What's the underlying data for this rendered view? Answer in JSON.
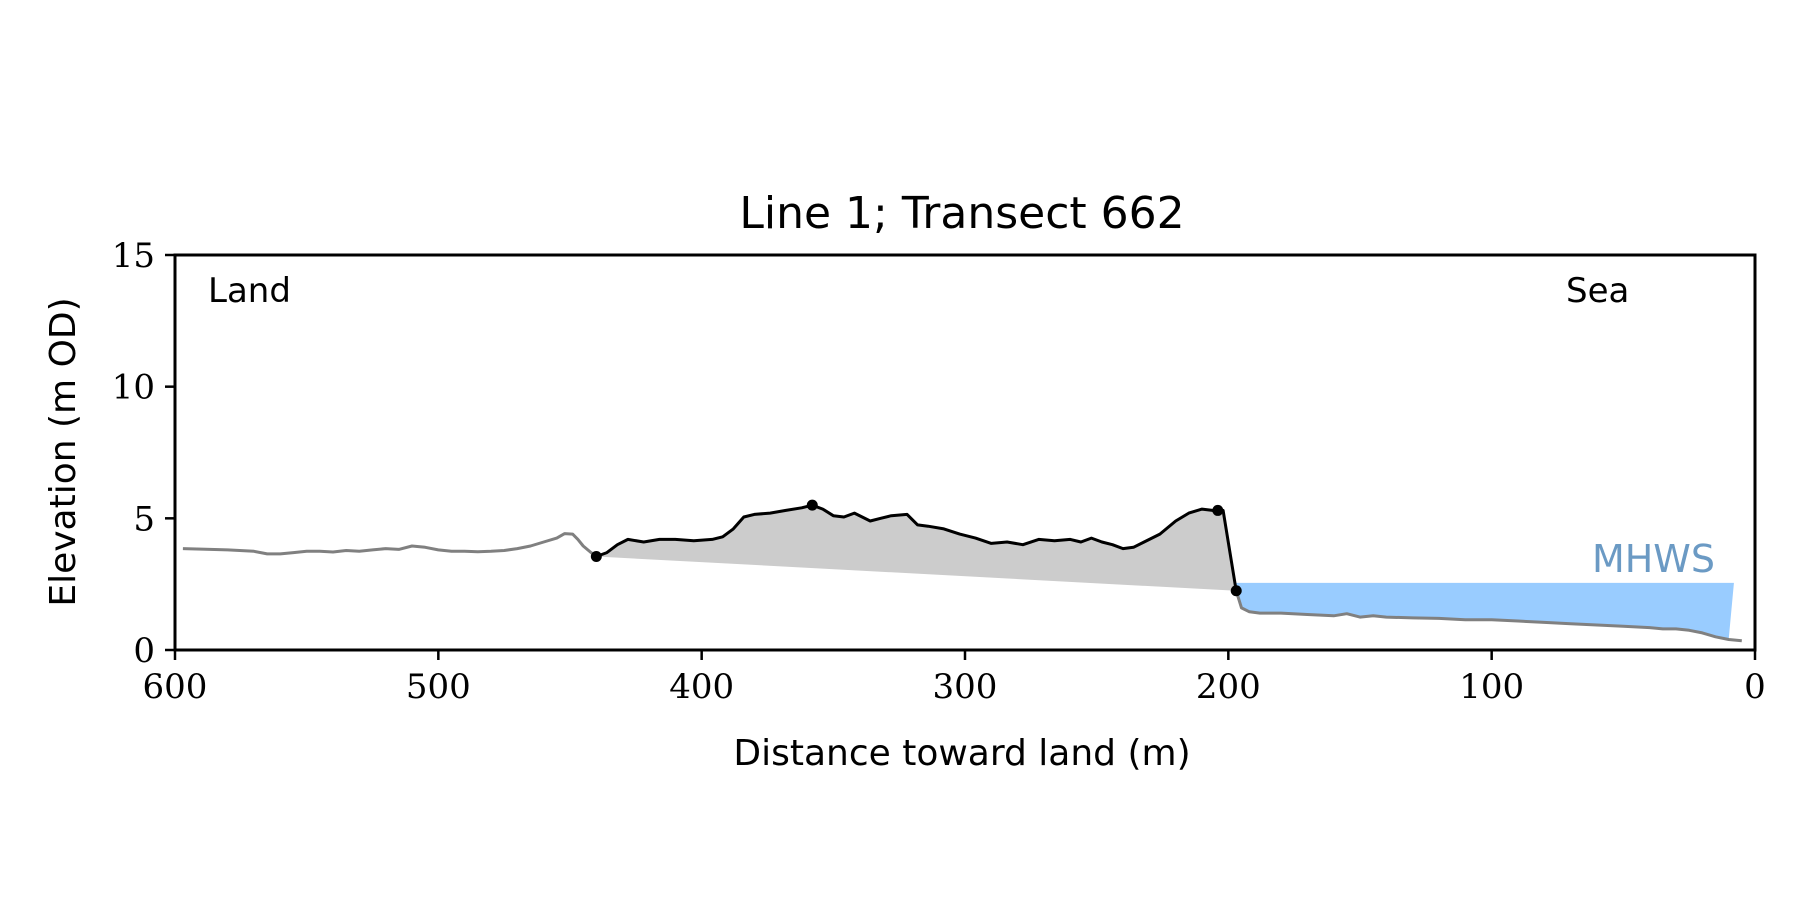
{
  "chart_data": {
    "type": "line",
    "title": "Line 1; Transect 662",
    "xlabel": "Distance toward land (m)",
    "ylabel": "Elevation (m OD)",
    "xlim": [
      600,
      0
    ],
    "ylim": [
      0,
      15
    ],
    "x_ticks": [
      600,
      500,
      400,
      300,
      200,
      100,
      0
    ],
    "y_ticks": [
      0,
      5,
      10,
      15
    ],
    "grid": false,
    "annotations": {
      "left": "Land",
      "right": "Sea",
      "mhws": "MHWS"
    },
    "mhws_level": 2.55,
    "colors": {
      "profile": "#808080",
      "dune": "#000000",
      "dune_fill": "#cccccc",
      "water": "#99ccff",
      "mhws_text": "#6b9ac4"
    },
    "series": [
      {
        "name": "",
        "role": "profile",
        "x": [
          597,
          590,
          580,
          570,
          565,
          560,
          555,
          550,
          545,
          540,
          535,
          530,
          525,
          520,
          515,
          510,
          505,
          500,
          495,
          490,
          485,
          480,
          475,
          470,
          465,
          460,
          455,
          452,
          449,
          447,
          445,
          442,
          440
        ],
        "y": [
          3.85,
          3.83,
          3.8,
          3.75,
          3.65,
          3.65,
          3.7,
          3.75,
          3.75,
          3.72,
          3.78,
          3.75,
          3.8,
          3.85,
          3.82,
          3.95,
          3.9,
          3.8,
          3.75,
          3.75,
          3.73,
          3.75,
          3.78,
          3.85,
          3.95,
          4.1,
          4.25,
          4.42,
          4.4,
          4.2,
          3.95,
          3.7,
          3.55
        ]
      },
      {
        "name": "",
        "role": "dune",
        "x": [
          440,
          436,
          432,
          428,
          422,
          416,
          410,
          403,
          396,
          392,
          388,
          384,
          380,
          374,
          368,
          362,
          358,
          354,
          350,
          346,
          342,
          336,
          332,
          328,
          322,
          318,
          314,
          308,
          302,
          296,
          290,
          284,
          278,
          272,
          266,
          260,
          256,
          252,
          248,
          244,
          240,
          236,
          232,
          226,
          220,
          215,
          210,
          206,
          204,
          202,
          197
        ],
        "y": [
          3.55,
          3.7,
          4.0,
          4.2,
          4.1,
          4.2,
          4.2,
          4.15,
          4.2,
          4.3,
          4.6,
          5.05,
          5.15,
          5.2,
          5.3,
          5.4,
          5.5,
          5.35,
          5.1,
          5.05,
          5.2,
          4.9,
          5.0,
          5.1,
          5.15,
          4.75,
          4.7,
          4.6,
          4.4,
          4.25,
          4.05,
          4.1,
          4.0,
          4.2,
          4.15,
          4.2,
          4.1,
          4.25,
          4.1,
          4.0,
          3.85,
          3.9,
          4.1,
          4.4,
          4.9,
          5.2,
          5.35,
          5.3,
          5.2,
          5.3,
          2.25
        ]
      },
      {
        "name": "",
        "role": "profile",
        "x": [
          197,
          195,
          192,
          188,
          180,
          170,
          160,
          155,
          150,
          145,
          140,
          130,
          120,
          110,
          100,
          90,
          80,
          70,
          60,
          50,
          40,
          35,
          30,
          25,
          20,
          15,
          10,
          5
        ],
        "y": [
          2.25,
          1.6,
          1.45,
          1.4,
          1.4,
          1.35,
          1.3,
          1.38,
          1.25,
          1.3,
          1.25,
          1.22,
          1.2,
          1.15,
          1.15,
          1.1,
          1.05,
          1.0,
          0.95,
          0.9,
          0.85,
          0.8,
          0.8,
          0.75,
          0.65,
          0.5,
          0.4,
          0.35
        ]
      }
    ],
    "dune_points": {
      "x": [
        440,
        358,
        204,
        197
      ],
      "y": [
        3.55,
        5.5,
        5.3,
        2.25
      ]
    },
    "dune_base": {
      "x": [
        440,
        197
      ],
      "y": [
        3.55,
        2.25
      ]
    },
    "water_extent": [
      197,
      8
    ]
  }
}
